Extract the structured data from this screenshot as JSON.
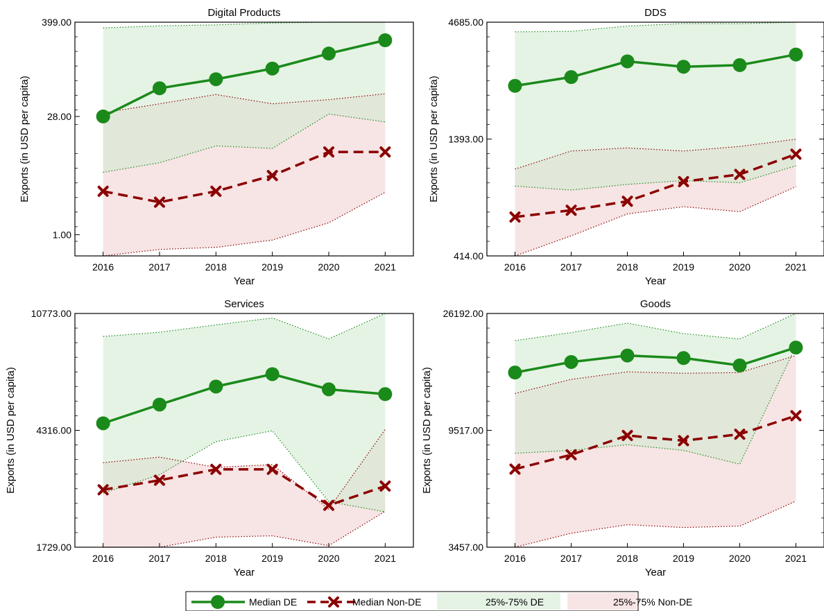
{
  "colors": {
    "de_line": "#1a8a1a",
    "nonde_line": "#8b0000",
    "de_band": "#cfe9cf",
    "nonde_band": "#f2d2d2"
  },
  "legend": {
    "median_de": "Median DE",
    "median_nonde": "Median Non-DE",
    "band_de": "25%-75% DE",
    "band_nonde": "25%-75% Non-DE"
  },
  "chart_data": [
    {
      "type": "line",
      "title": "Digital Products",
      "xlabel": "Year",
      "ylabel": "Exports (in USD per capita)",
      "x": [
        2016,
        2017,
        2018,
        2019,
        2020,
        2021
      ],
      "yscale": "log",
      "ylim": [
        0.55,
        399
      ],
      "yticks": [
        1.0,
        28.0,
        399.0
      ],
      "ytick_labels": [
        "1.00",
        "28.00",
        "399.00"
      ],
      "series": [
        {
          "name": "Median DE",
          "values": [
            28,
            62,
            80,
            108,
            165,
            240
          ]
        },
        {
          "name": "Median Non-DE",
          "values": [
            3.4,
            2.5,
            3.4,
            5.3,
            10.3,
            10.3
          ]
        },
        {
          "name": "25%-75% DE",
          "low": [
            5.8,
            7.6,
            12.2,
            11.4,
            30.0,
            24.0
          ],
          "high": [
            340,
            360,
            370,
            390,
            399,
            399
          ]
        },
        {
          "name": "25%-75% Non-DE",
          "low": [
            0.55,
            0.66,
            0.7,
            0.86,
            1.4,
            3.3
          ],
          "high": [
            31,
            40,
            52,
            40,
            45,
            53
          ]
        }
      ]
    },
    {
      "type": "line",
      "title": "DDS",
      "xlabel": "Year",
      "ylabel": "Exports (in USD per capita)",
      "x": [
        2016,
        2017,
        2018,
        2019,
        2020,
        2021
      ],
      "yscale": "log",
      "ylim": [
        414,
        4685
      ],
      "yticks": [
        414.0,
        1393.0,
        4685.0
      ],
      "ytick_labels": [
        "414.00",
        "1393.00",
        "4685.00"
      ],
      "series": [
        {
          "name": "Median DE",
          "values": [
            2420,
            2650,
            3120,
            2950,
            3000,
            3350
          ]
        },
        {
          "name": "Median Non-DE",
          "values": [
            620,
            665,
            730,
            895,
            965,
            1190
          ]
        },
        {
          "name": "25%-75% DE",
          "low": [
            855,
            820,
            870,
            905,
            885,
            1055
          ],
          "high": [
            4240,
            4260,
            4500,
            4620,
            4610,
            4685
          ]
        },
        {
          "name": "25%-75% Non-DE",
          "low": [
            414,
            510,
            640,
            690,
            655,
            850
          ],
          "high": [
            1020,
            1230,
            1270,
            1230,
            1290,
            1390
          ]
        }
      ]
    },
    {
      "type": "line",
      "title": "Services",
      "xlabel": "Year",
      "ylabel": "Exports (in USD per capita)",
      "x": [
        2016,
        2017,
        2018,
        2019,
        2020,
        2021
      ],
      "yscale": "log",
      "ylim": [
        1729,
        10773
      ],
      "yticks": [
        1729.0,
        4316.0,
        10773.0
      ],
      "ytick_labels": [
        "1729.00",
        "4316.00",
        "10773.00"
      ],
      "series": [
        {
          "name": "Median DE",
          "values": [
            4560,
            5280,
            6080,
            6700,
            5950,
            5730
          ]
        },
        {
          "name": "Median Non-DE",
          "values": [
            2710,
            2920,
            3180,
            3180,
            2400,
            2790
          ]
        },
        {
          "name": "25%-75% DE",
          "low": [
            2640,
            3050,
            3950,
            4300,
            2470,
            2280
          ],
          "high": [
            9000,
            9300,
            9850,
            10400,
            8830,
            10773
          ]
        },
        {
          "name": "25%-75% Non-DE",
          "low": [
            1729,
            1729,
            1870,
            1890,
            1750,
            2290
          ],
          "high": [
            3350,
            3500,
            3230,
            3300,
            2330,
            4350
          ]
        }
      ]
    },
    {
      "type": "line",
      "title": "Goods",
      "xlabel": "Year",
      "ylabel": "Exports (in USD per capita)",
      "x": [
        2016,
        2017,
        2018,
        2019,
        2020,
        2021
      ],
      "yscale": "log",
      "ylim": [
        3457,
        26192
      ],
      "yticks": [
        3457.0,
        9517.0,
        26192.0
      ],
      "ytick_labels": [
        "3457.00",
        "9517.00",
        "26192.00"
      ],
      "series": [
        {
          "name": "Median DE",
          "values": [
            15700,
            17200,
            18200,
            17800,
            16700,
            19500
          ]
        },
        {
          "name": "Median Non-DE",
          "values": [
            6800,
            7700,
            9100,
            8700,
            9200,
            10800
          ]
        },
        {
          "name": "25%-75% DE",
          "low": [
            7800,
            8000,
            8400,
            8000,
            7100,
            19700
          ],
          "high": [
            20700,
            22200,
            24100,
            22000,
            21000,
            26192
          ]
        },
        {
          "name": "25%-75% Non-DE",
          "low": [
            3457,
            3900,
            4200,
            4100,
            4150,
            5150
          ],
          "high": [
            13100,
            14800,
            15800,
            15600,
            15700,
            18200
          ]
        }
      ]
    }
  ]
}
